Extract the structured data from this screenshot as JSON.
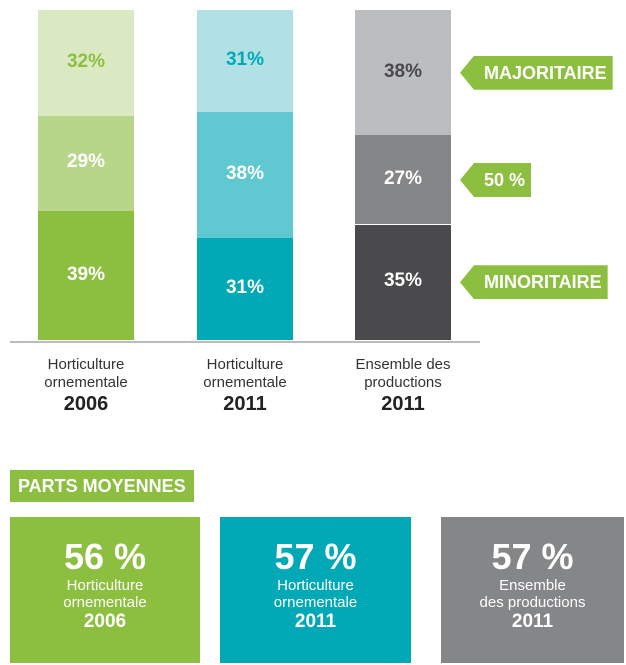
{
  "chart_data": {
    "type": "stacked_bar",
    "categories": [
      "Horticulture ornementale",
      "Horticulture ornementale",
      "Ensemble des productions"
    ],
    "category_years": [
      "2006",
      "2011",
      "2011"
    ],
    "ylim": [
      0,
      100
    ],
    "series": [
      {
        "name": "MINORITAIRE",
        "values": [
          39,
          31,
          35
        ],
        "value_labels": [
          "39%",
          "31%",
          "35%"
        ],
        "colors": [
          "#8cbf3f",
          "#00a9b5",
          "#4a4a4c"
        ],
        "label_colors": [
          "#ffffff",
          "#ffffff",
          "#ffffff"
        ]
      },
      {
        "name": "50 %",
        "values": [
          29,
          38,
          27
        ],
        "value_labels": [
          "29%",
          "38%",
          "27%"
        ],
        "colors": [
          "#b8d689",
          "#5fc8d0",
          "#858688"
        ],
        "label_colors": [
          "#ffffff",
          "#ffffff",
          "#ffffff"
        ]
      },
      {
        "name": "MAJORITAIRE",
        "values": [
          32,
          31,
          38
        ],
        "value_labels": [
          "32%",
          "31%",
          "38%"
        ],
        "colors": [
          "#dbe9c3",
          "#b1e0e5",
          "#bcbdbf"
        ],
        "label_colors": [
          "#8cbf3f",
          "#00a9b5",
          "#4a4a4c"
        ]
      }
    ],
    "tag_color": "#8cbf3f"
  },
  "summary": {
    "title": "PARTS MOYENNES",
    "boxes": [
      {
        "value": 56,
        "value_label": "56 %",
        "name_lines": [
          "Horticulture",
          "ornementale"
        ],
        "year": "2006",
        "color": "#8cbf3f"
      },
      {
        "value": 57,
        "value_label": "57 %",
        "name_lines": [
          "Horticulture",
          "ornementale"
        ],
        "year": "2011",
        "color": "#00a9b5"
      },
      {
        "value": 57,
        "value_label": "57 %",
        "name_lines": [
          "Ensemble",
          "des productions"
        ],
        "year": "2011",
        "color": "#858688"
      }
    ]
  }
}
